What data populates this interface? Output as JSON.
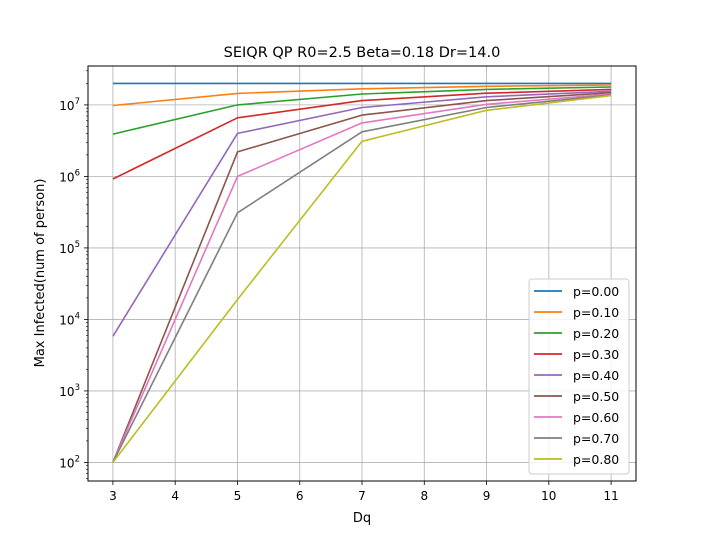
{
  "chart_data": {
    "type": "line",
    "title": "SEIQR QP R0=2.5 Beta=0.18 Dr=14.0",
    "xlabel": "Dq",
    "ylabel": "Max Infected(num of person)",
    "x": [
      3,
      5,
      7,
      9,
      11
    ],
    "xlim": [
      2.6,
      11.4
    ],
    "xticks": [
      3,
      4,
      5,
      6,
      7,
      8,
      9,
      10,
      11
    ],
    "ylim": [
      55,
      35000000
    ],
    "yscale": "log",
    "yticks": [
      {
        "value": 100,
        "base": "10",
        "exp": "2"
      },
      {
        "value": 1000,
        "base": "10",
        "exp": "3"
      },
      {
        "value": 10000,
        "base": "10",
        "exp": "4"
      },
      {
        "value": 100000,
        "base": "10",
        "exp": "5"
      },
      {
        "value": 1000000,
        "base": "10",
        "exp": "6"
      },
      {
        "value": 10000000,
        "base": "10",
        "exp": "7"
      }
    ],
    "grid": true,
    "legend_position": "lower-right",
    "series": [
      {
        "name": "p=0.00",
        "color": "#1f77b4",
        "values": [
          20000000,
          20000000,
          20000000,
          20000000,
          20000000
        ]
      },
      {
        "name": "p=0.10",
        "color": "#ff7f0e",
        "values": [
          9800000,
          14500000,
          16800000,
          18200000,
          19000000
        ]
      },
      {
        "name": "p=0.20",
        "color": "#2ca02c",
        "values": [
          3900000,
          10000000,
          14200000,
          16500000,
          17800000
        ]
      },
      {
        "name": "p=0.30",
        "color": "#d62728",
        "values": [
          920000,
          6600000,
          11500000,
          14600000,
          16500000
        ]
      },
      {
        "name": "p=0.40",
        "color": "#9467bd",
        "values": [
          5800,
          4000000,
          9200000,
          13000000,
          15500000
        ]
      },
      {
        "name": "p=0.50",
        "color": "#8c564b",
        "values": [
          100,
          2200000,
          7200000,
          11500000,
          14800000
        ]
      },
      {
        "name": "p=0.60",
        "color": "#e377c2",
        "values": [
          100,
          1000000,
          5600000,
          10200000,
          14200000
        ]
      },
      {
        "name": "p=0.70",
        "color": "#7f7f7f",
        "values": [
          100,
          310000,
          4200000,
          9200000,
          13800000
        ]
      },
      {
        "name": "p=0.80",
        "color": "#bcbd22",
        "values": [
          100,
          19000,
          3100000,
          8400000,
          13500000
        ]
      }
    ]
  }
}
